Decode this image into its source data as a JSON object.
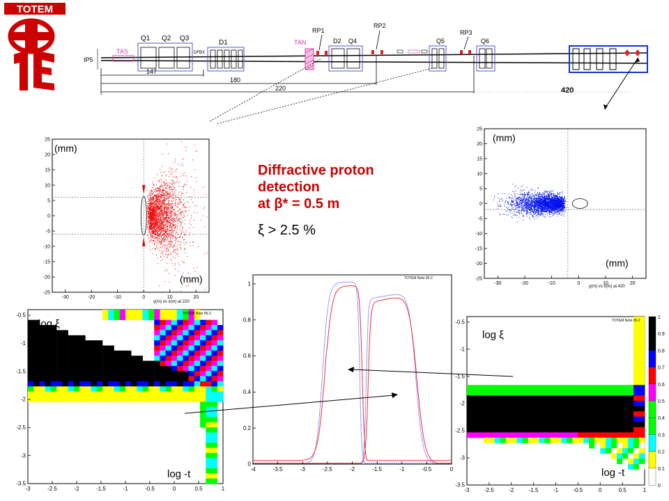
{
  "logo": {
    "text": "TOTEM"
  },
  "beamline": {
    "ip_label": "IP5",
    "elements": [
      "TAS",
      "Q1",
      "Q2",
      "Q3",
      "D1",
      "DFBX",
      "TAN",
      "RP1",
      "D2",
      "Q4",
      "RP2",
      "Q5",
      "RP3",
      "Q6"
    ],
    "distances": [
      "147",
      "180",
      "220"
    ],
    "station_420": "420"
  },
  "headline": {
    "line1": "Diffractive proton",
    "line2": "detection",
    "line3": "at β* = 0.5 m",
    "line4": "ξ > 2.5 %"
  },
  "colors": {
    "red_points": "#ee0000",
    "blue_points": "#0011ee",
    "headline": "#cc0000"
  },
  "chart_data": [
    {
      "type": "scatter",
      "xlabel": "y(m) vs x(m) at 220",
      "unit_top": "(mm)",
      "unit_bottom": "(mm)",
      "xlim": [
        -35,
        25
      ],
      "ylim": [
        -25,
        25
      ],
      "xticks": [
        "-30",
        "-20",
        "-10",
        "0",
        "10",
        "20"
      ],
      "yticks": [
        "25",
        "20",
        "15",
        "10",
        "5",
        "0",
        "-5",
        "-10",
        "-15",
        "-20",
        "-25"
      ],
      "guides": {
        "x": 0,
        "y": [
          6,
          -6
        ]
      }
    },
    {
      "type": "scatter",
      "xlabel": "y(m) vs x(m) at 420",
      "unit_top": "(mm)",
      "unit_bottom": "(mm)",
      "xlim": [
        -35,
        25
      ],
      "ylim": [
        -25,
        25
      ],
      "xticks": [
        "-30",
        "-20",
        "-10",
        "0",
        "10",
        "20"
      ],
      "yticks": [
        "25",
        "20",
        "15",
        "10",
        "5",
        "0",
        "-5",
        "-10",
        "-15",
        "-20",
        "-25"
      ],
      "guides": {
        "x": -4,
        "y": [
          -2
        ]
      }
    },
    {
      "type": "heatmap",
      "ylabel": "log ξ",
      "xlabel": "log -t",
      "note": "TOTEM Note 05-2",
      "xlim": [
        -3,
        1
      ],
      "ylim": [
        -3.5,
        -0.4
      ],
      "xticks": [
        "-3",
        "-2.5",
        "-2",
        "-1.5",
        "-1",
        "-0.5",
        "0",
        "0.5",
        "1"
      ],
      "yticks": [
        "-0.5",
        "-1",
        "-1.5",
        "-2",
        "-2.5",
        "-3",
        "-3.5"
      ]
    },
    {
      "type": "line",
      "note": "TOTEM Note 05-2",
      "xlim": [
        -4,
        0
      ],
      "ylim": [
        0,
        1.05
      ],
      "xticks": [
        "-4",
        "-3.5",
        "-3",
        "-2.5",
        "-2",
        "-1.5",
        "-1",
        "-0.5",
        "0"
      ],
      "yticks": [
        "0",
        "0.2",
        "0.4",
        "0.6",
        "0.8",
        "1"
      ]
    },
    {
      "type": "heatmap",
      "ylabel": "log ξ",
      "xlabel": "log -t",
      "note": "TOTEM Note 05-2",
      "xlim": [
        -3,
        1
      ],
      "ylim": [
        -3.5,
        -0.4
      ],
      "xticks": [
        "-3",
        "-2.5",
        "-2",
        "-1.5",
        "-1",
        "-0.5",
        "0",
        "0.5",
        "1"
      ],
      "yticks": [
        "-0.5",
        "-1",
        "-1.5",
        "-2",
        "-2.5",
        "-3",
        "-3.5"
      ],
      "colorbar": [
        "1",
        "0.9",
        "0.8",
        "0.7",
        "0.6",
        "0.5",
        "0.4",
        "0.3",
        "0.2",
        "0.1",
        "0"
      ]
    }
  ]
}
